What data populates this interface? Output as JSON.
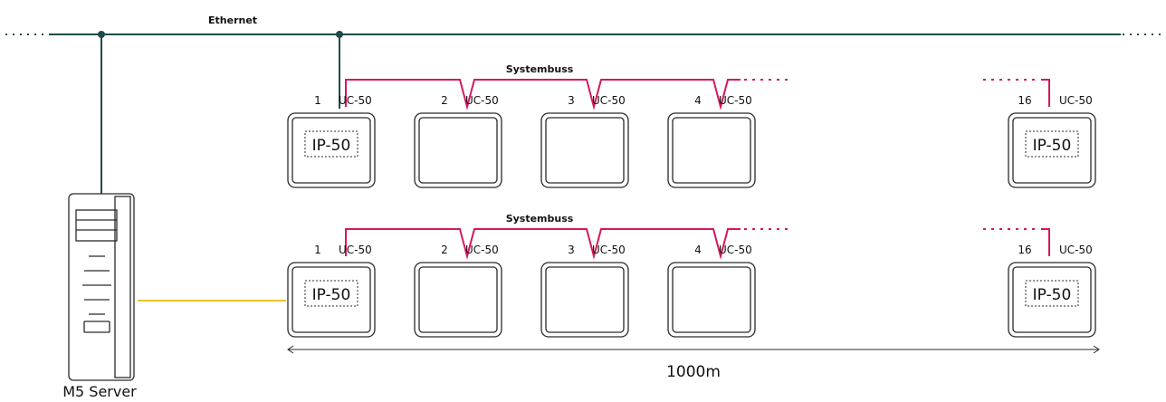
{
  "colors": {
    "ethernet": "#1f4a4a",
    "systembuss": "#d6175e",
    "server_link": "#e6c52a",
    "outline": "#2a2a2a",
    "text": "#111111"
  },
  "ethernet": {
    "label": "Ethernet"
  },
  "rows": [
    {
      "bus_label": "Systembuss",
      "controllers": [
        {
          "number": "1",
          "model": "UC-50",
          "panel": "IP-50"
        },
        {
          "number": "2",
          "model": "UC-50",
          "panel": ""
        },
        {
          "number": "3",
          "model": "UC-50",
          "panel": ""
        },
        {
          "number": "4",
          "model": "UC-50",
          "panel": ""
        },
        {
          "number": "16",
          "model": "UC-50",
          "panel": "IP-50"
        }
      ]
    },
    {
      "bus_label": "Systembuss",
      "controllers": [
        {
          "number": "1",
          "model": "UC-50",
          "panel": "IP-50"
        },
        {
          "number": "2",
          "model": "UC-50",
          "panel": ""
        },
        {
          "number": "3",
          "model": "UC-50",
          "panel": ""
        },
        {
          "number": "4",
          "model": "UC-50",
          "panel": ""
        },
        {
          "number": "16",
          "model": "UC-50",
          "panel": "IP-50"
        }
      ]
    }
  ],
  "distance": {
    "label": "1000m"
  },
  "server": {
    "label": "M5 Server",
    "icon": "server-tower-icon"
  }
}
